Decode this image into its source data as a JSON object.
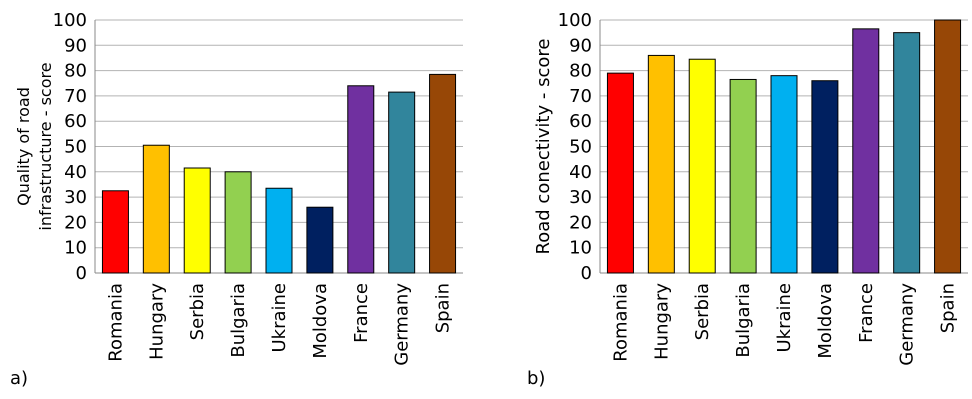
{
  "chart_data": [
    {
      "type": "bar",
      "panel_label": "a)",
      "ylabel_lines": [
        "Quality of road",
        "infrastructure - score"
      ],
      "categories": [
        "Romania",
        "Hungary",
        "Serbia",
        "Bulgaria",
        "Ukraine",
        "Moldova",
        "France",
        "Germany",
        "Spain"
      ],
      "values": [
        32.5,
        50.5,
        41.5,
        40,
        33.5,
        26,
        74,
        71.5,
        78.5
      ],
      "colors": [
        "#ff0000",
        "#ffc000",
        "#ffff00",
        "#92d050",
        "#00b0f0",
        "#002060",
        "#7030a0",
        "#31859c",
        "#974706"
      ],
      "yticks": [
        "0",
        "10",
        "20",
        "30",
        "40",
        "50",
        "60",
        "70",
        "80",
        "90",
        "100"
      ],
      "ylim": [
        0,
        100
      ],
      "grid": true
    },
    {
      "type": "bar",
      "panel_label": "b)",
      "ylabel_lines": [
        "Road conectivity - score"
      ],
      "categories": [
        "Romania",
        "Hungary",
        "Serbia",
        "Bulgaria",
        "Ukraine",
        "Moldova",
        "France",
        "Germany",
        "Spain"
      ],
      "values": [
        79,
        86,
        84.5,
        76.5,
        78,
        76,
        96.5,
        95,
        100
      ],
      "colors": [
        "#ff0000",
        "#ffc000",
        "#ffff00",
        "#92d050",
        "#00b0f0",
        "#002060",
        "#7030a0",
        "#31859c",
        "#974706"
      ],
      "yticks": [
        "0",
        "10",
        "20",
        "30",
        "40",
        "50",
        "60",
        "70",
        "80",
        "90",
        "100"
      ],
      "ylim": [
        0,
        100
      ],
      "grid": true
    }
  ]
}
